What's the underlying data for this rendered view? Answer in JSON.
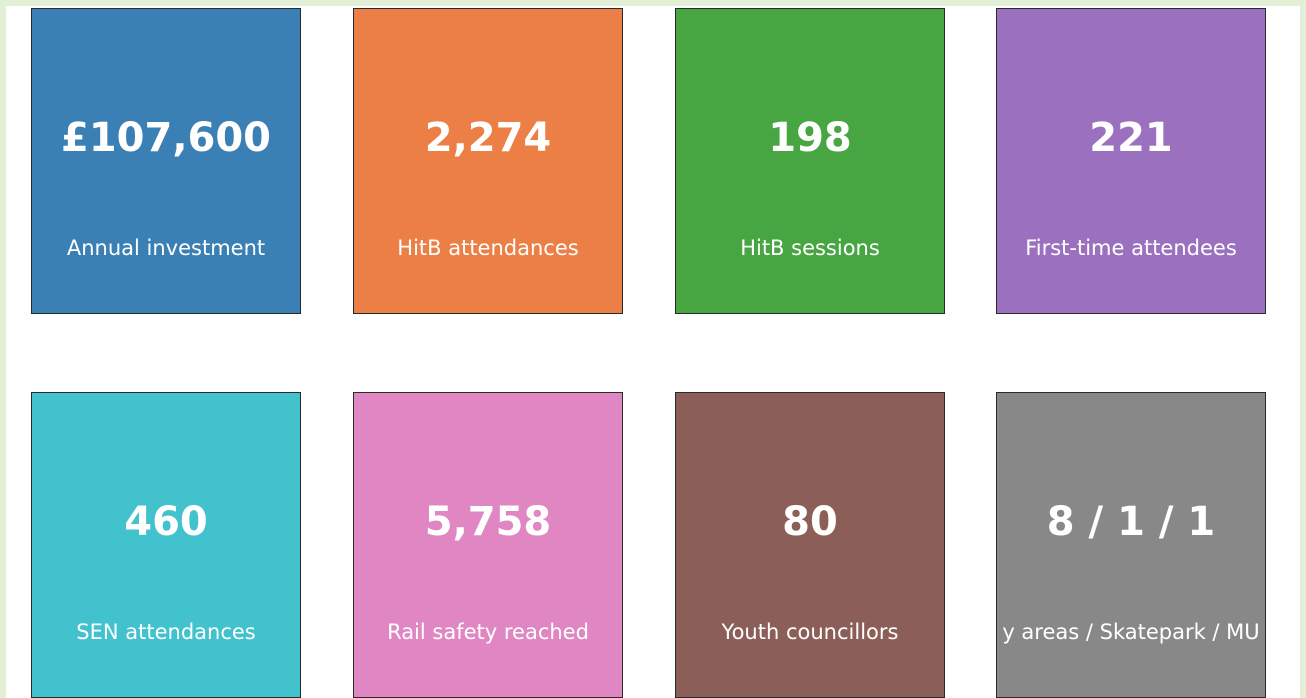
{
  "tiles": [
    {
      "value": "£107,600",
      "label": "Annual investment",
      "color": "#3b80b4"
    },
    {
      "value": "2,274",
      "label": "HitB attendances",
      "color": "#ec7f46"
    },
    {
      "value": "198",
      "label": "HitB sessions",
      "color": "#47a642"
    },
    {
      "value": "221",
      "label": "First-time attendees",
      "color": "#9b71bf"
    },
    {
      "value": "460",
      "label": "SEN attendances",
      "color": "#41c2cd"
    },
    {
      "value": "5,758",
      "label": "Rail safety reached",
      "color": "#e087c3"
    },
    {
      "value": "80",
      "label": "Youth councillors",
      "color": "#8b5e58"
    },
    {
      "value": "8 / 1 / 1",
      "label": "y areas / Skatepark / MU",
      "color": "#888888"
    }
  ]
}
